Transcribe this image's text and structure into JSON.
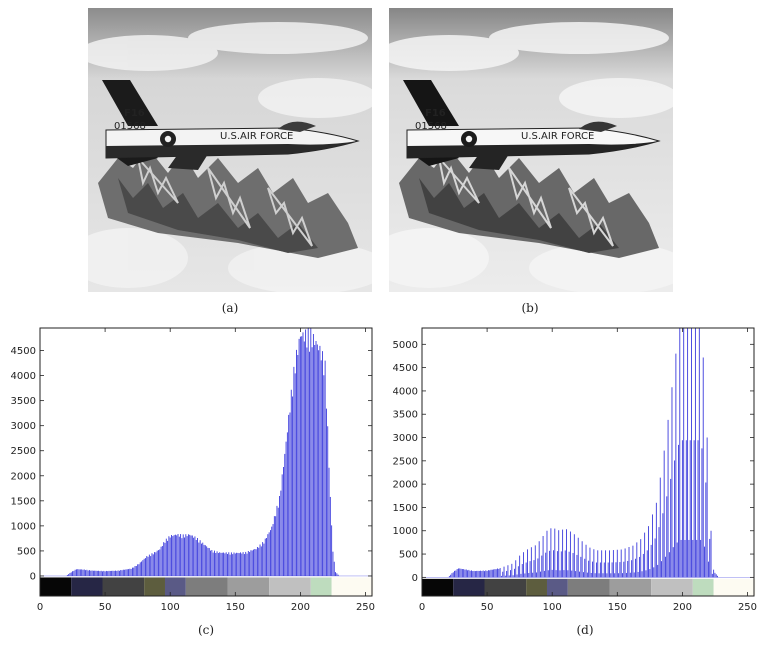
{
  "panels": {
    "a": {
      "label": "(a)",
      "jet_text": {
        "tail": "F16",
        "serial": "01568",
        "fuselage": "U.S.AIR FORCE"
      }
    },
    "b": {
      "label": "(b)",
      "jet_text": {
        "tail": "F16",
        "serial": "01568",
        "fuselage": "U.S.AIR FORCE"
      }
    },
    "c": {
      "label": "(c)"
    },
    "d": {
      "label": "(d)"
    }
  },
  "colors": {
    "bars": "#3b3bdc",
    "intensity_strip": [
      {
        "from": 0,
        "to": 24,
        "color": "#060606"
      },
      {
        "from": 24,
        "to": 48,
        "color": "#262645"
      },
      {
        "from": 48,
        "to": 80,
        "color": "#424242"
      },
      {
        "from": 80,
        "to": 96,
        "color": "#5d5d3e"
      },
      {
        "from": 96,
        "to": 112,
        "color": "#5a5a86"
      },
      {
        "from": 112,
        "to": 144,
        "color": "#7d7d7d"
      },
      {
        "from": 144,
        "to": 176,
        "color": "#9d9d9d"
      },
      {
        "from": 176,
        "to": 208,
        "color": "#c0c0c0"
      },
      {
        "from": 208,
        "to": 224,
        "color": "#bedcbe"
      },
      {
        "from": 224,
        "to": 256,
        "color": "#fdfbf2"
      }
    ]
  },
  "chart_data": [
    {
      "type": "bar",
      "panel": "c",
      "xlim": [
        0,
        255
      ],
      "ylim": [
        -400,
        4950
      ],
      "xticks": [
        0,
        50,
        100,
        150,
        200,
        250
      ],
      "yticks": [
        0,
        500,
        1000,
        1500,
        2000,
        2500,
        3000,
        3500,
        4000,
        4500
      ],
      "profile": [
        [
          0,
          0
        ],
        [
          20,
          0
        ],
        [
          24,
          80
        ],
        [
          28,
          140
        ],
        [
          34,
          130
        ],
        [
          40,
          110
        ],
        [
          50,
          100
        ],
        [
          60,
          110
        ],
        [
          70,
          150
        ],
        [
          76,
          250
        ],
        [
          82,
          400
        ],
        [
          88,
          480
        ],
        [
          92,
          550
        ],
        [
          96,
          720
        ],
        [
          100,
          820
        ],
        [
          105,
          850
        ],
        [
          110,
          830
        ],
        [
          115,
          850
        ],
        [
          120,
          780
        ],
        [
          126,
          650
        ],
        [
          132,
          520
        ],
        [
          138,
          480
        ],
        [
          148,
          470
        ],
        [
          158,
          480
        ],
        [
          166,
          560
        ],
        [
          172,
          700
        ],
        [
          178,
          1000
        ],
        [
          184,
          1600
        ],
        [
          188,
          2500
        ],
        [
          192,
          3500
        ],
        [
          196,
          4400
        ],
        [
          200,
          4950
        ],
        [
          205,
          4950
        ],
        [
          208,
          4950
        ],
        [
          212,
          4800
        ],
        [
          216,
          4600
        ],
        [
          219,
          4300
        ],
        [
          221,
          3000
        ],
        [
          223,
          1600
        ],
        [
          225,
          500
        ],
        [
          227,
          80
        ],
        [
          230,
          0
        ],
        [
          255,
          0
        ]
      ]
    },
    {
      "type": "bar",
      "panel": "d",
      "xlim": [
        0,
        255
      ],
      "ylim": [
        -400,
        5350
      ],
      "xticks": [
        0,
        50,
        100,
        150,
        200,
        250
      ],
      "yticks": [
        0,
        500,
        1000,
        1500,
        2000,
        2500,
        3000,
        3500,
        4000,
        4500,
        5000
      ],
      "profile": [
        [
          0,
          0
        ],
        [
          20,
          0
        ],
        [
          24,
          120
        ],
        [
          28,
          200
        ],
        [
          34,
          170
        ],
        [
          40,
          140
        ],
        [
          50,
          150
        ],
        [
          60,
          200
        ],
        [
          70,
          300
        ],
        [
          76,
          500
        ],
        [
          82,
          620
        ],
        [
          88,
          700
        ],
        [
          92,
          850
        ],
        [
          96,
          1000
        ],
        [
          100,
          1070
        ],
        [
          106,
          1000
        ],
        [
          110,
          1050
        ],
        [
          116,
          950
        ],
        [
          122,
          800
        ],
        [
          128,
          650
        ],
        [
          134,
          580
        ],
        [
          144,
          580
        ],
        [
          154,
          600
        ],
        [
          162,
          680
        ],
        [
          168,
          820
        ],
        [
          174,
          1100
        ],
        [
          180,
          1600
        ],
        [
          185,
          2500
        ],
        [
          190,
          3600
        ],
        [
          195,
          4800
        ],
        [
          198,
          5350
        ],
        [
          214,
          5350
        ],
        [
          217,
          4400
        ],
        [
          219,
          3000
        ],
        [
          221,
          1500
        ],
        [
          223,
          500
        ],
        [
          225,
          100
        ],
        [
          228,
          0
        ],
        [
          255,
          0
        ]
      ]
    }
  ]
}
